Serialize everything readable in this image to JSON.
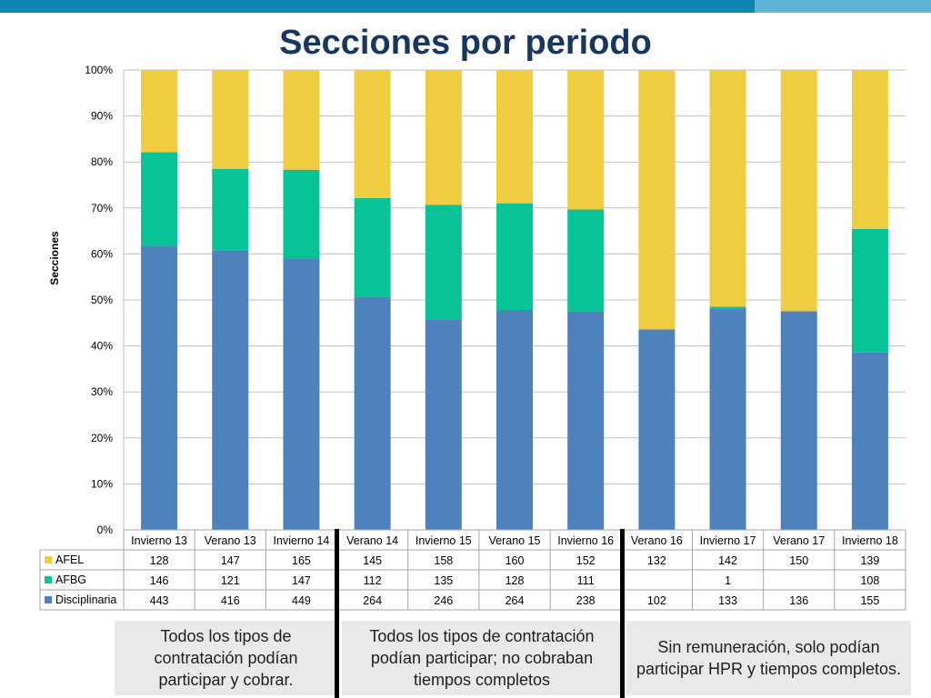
{
  "page": {
    "title": "Secciones por periodo"
  },
  "chart_data": {
    "type": "bar",
    "stacked": "percent",
    "ylabel": "Secciones",
    "ylim": [
      0,
      100
    ],
    "yticks": [
      "0%",
      "10%",
      "20%",
      "30%",
      "40%",
      "50%",
      "60%",
      "70%",
      "80%",
      "90%",
      "100%"
    ],
    "grid": true,
    "categories": [
      "Invierno 13",
      "Verano 13",
      "Invierno 14",
      "Verano 14",
      "Invierno 15",
      "Verano 15",
      "Invierno 16",
      "Verano 16",
      "Invierno 17",
      "Verano 17",
      "Invierno 18"
    ],
    "series": [
      {
        "name": "AFEL",
        "color": "#f0cc41",
        "values": [
          128,
          147,
          165,
          145,
          158,
          160,
          152,
          132,
          142,
          150,
          139
        ],
        "labels": [
          "128",
          "147",
          "165",
          "145",
          "158",
          "160",
          "152",
          "132",
          "142",
          "150",
          "139"
        ]
      },
      {
        "name": "AFBG",
        "color": "#07c396",
        "values": [
          146,
          121,
          147,
          112,
          135,
          128,
          111,
          0,
          1,
          0,
          108
        ],
        "labels": [
          "146",
          "121",
          "147",
          "112",
          "135",
          "128",
          "111",
          "",
          "1",
          "",
          "108"
        ]
      },
      {
        "name": "Disciplinaria",
        "color": "#4f81bd",
        "values": [
          443,
          416,
          449,
          264,
          246,
          264,
          238,
          102,
          133,
          136,
          155
        ],
        "labels": [
          "443",
          "416",
          "449",
          "264",
          "246",
          "264",
          "238",
          "102",
          "133",
          "136",
          "155"
        ]
      }
    ]
  },
  "notes": [
    {
      "text": "Todos los tipos de contratación podían participar y cobrar."
    },
    {
      "text": "Todos los tipos de contratación podían participar; no cobraban tiempos completos"
    },
    {
      "text": "Sin remuneración, solo podían participar HPR y tiempos completos."
    }
  ]
}
